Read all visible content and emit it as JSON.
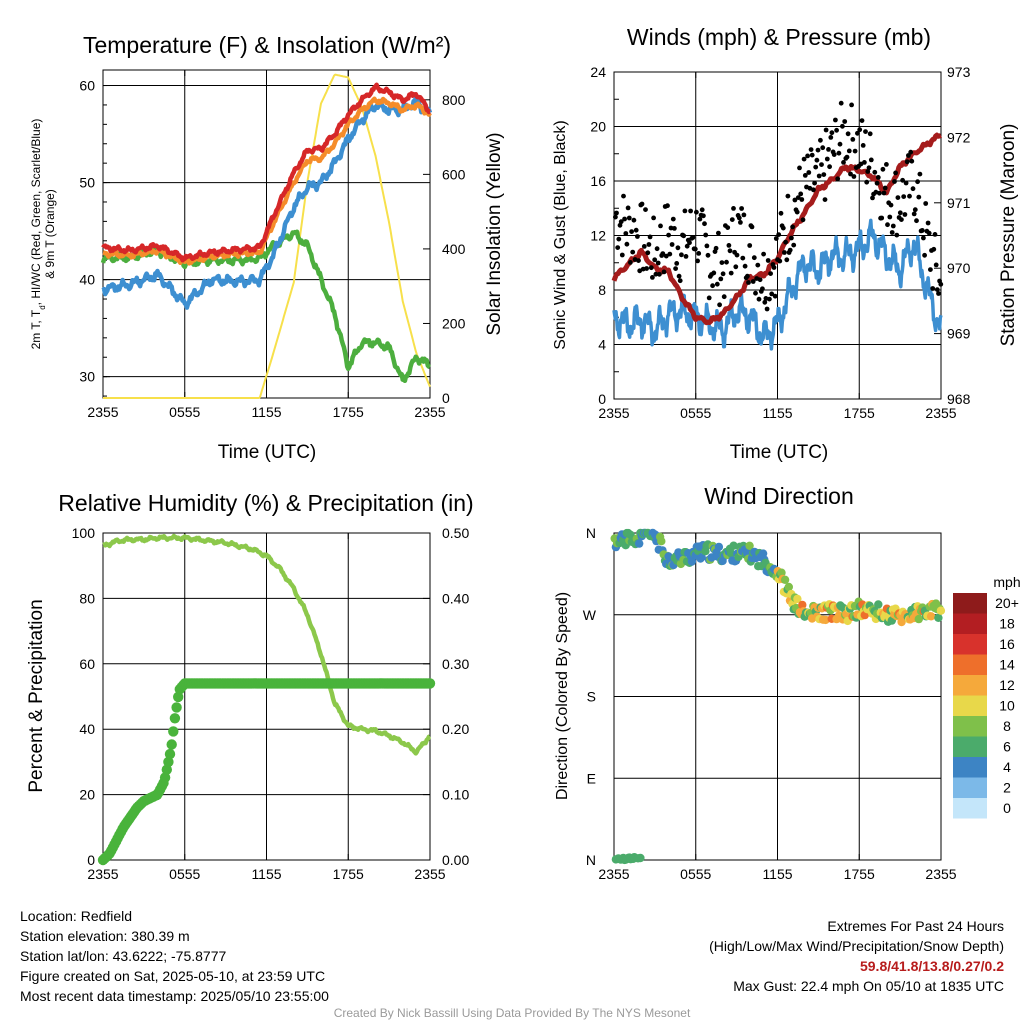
{
  "panels": {
    "temp": {
      "title": "Temperature (F) & Insolation (W/m²)",
      "xlabel": "Time (UTC)",
      "ylabel_lines": [
        "2m T, T",
        "d",
        ", HI/WC (Red, Green, Scarlet/Blue)",
        "& 9m T (Orange)"
      ],
      "y2label": "Solar Insolation (Yellow)"
    },
    "wind": {
      "title": "Winds (mph) & Pressure (mb)",
      "xlabel": "Time (UTC)",
      "ylabel": "Sonic Wind & Gust (Blue, Black)",
      "y2label": "Station Pressure (Maroon)"
    },
    "rh": {
      "title": "Relative Humidity (%) & Precipitation (in)",
      "ylabel": "Percent & Precipitation"
    },
    "dir": {
      "title": "Wind Direction",
      "ylabel": "Direction (Colored By Speed)",
      "colorbar_title": "mph"
    }
  },
  "chart_data": [
    {
      "type": "line",
      "title": "Temperature (F) & Insolation (W/m²)",
      "xlabel": "Time (UTC)",
      "ylabel": "2m T, Td, HI/WC (Red, Green, Scarlet/Blue) & 9m T (Orange)",
      "y2label": "Solar Insolation (Yellow)",
      "x": [
        0,
        2,
        4,
        6,
        8,
        10,
        11.5,
        12.5,
        14,
        15,
        16,
        17,
        18,
        19,
        20,
        21,
        22,
        23,
        24
      ],
      "xticks": [
        "2355",
        "0555",
        "1155",
        "1755",
        "2355"
      ],
      "ylim": [
        27.8,
        61.6
      ],
      "yticks": [
        30,
        40,
        50,
        60
      ],
      "y2lim": [
        0,
        880
      ],
      "y2ticks": [
        0,
        200,
        400,
        600,
        800
      ],
      "series": [
        {
          "name": "2m T",
          "color": "#d62728",
          "axis": "left",
          "values": [
            43.3,
            43.0,
            43.5,
            42.2,
            42.8,
            43.1,
            43.3,
            46.5,
            51.0,
            53.3,
            53.5,
            55.0,
            57.0,
            58.5,
            59.8,
            59.3,
            58.5,
            59.2,
            57.3
          ]
        },
        {
          "name": "9m T",
          "color": "#f58c2a",
          "axis": "left",
          "values": [
            42.7,
            42.5,
            43.0,
            41.8,
            42.4,
            42.7,
            42.8,
            45.8,
            50.0,
            52.3,
            52.5,
            54.0,
            56.0,
            57.5,
            58.5,
            58.2,
            57.5,
            58.0,
            57.0
          ]
        },
        {
          "name": "HI/WC",
          "color": "#3d8fd1",
          "axis": "left",
          "values": [
            39.0,
            39.5,
            40.5,
            37.5,
            40.0,
            39.8,
            40.0,
            42.5,
            47.5,
            49.5,
            50.0,
            52.0,
            54.5,
            56.5,
            58.0,
            57.5,
            57.5,
            58.3,
            57.0
          ]
        },
        {
          "name": "Td",
          "color": "#4cae3e",
          "axis": "left",
          "values": [
            42.2,
            42.3,
            43.0,
            41.7,
            42.0,
            42.0,
            42.2,
            43.5,
            44.8,
            43.5,
            40.0,
            36.5,
            31.0,
            33.5,
            33.5,
            33.0,
            29.5,
            32.0,
            31.2
          ]
        },
        {
          "name": "Solar Insolation",
          "color": "#f7e04b",
          "axis": "right",
          "values": [
            0,
            0,
            0,
            0,
            0,
            0,
            0,
            120,
            310,
            580,
            790,
            868,
            860,
            780,
            650,
            470,
            260,
            120,
            30
          ]
        }
      ]
    },
    {
      "type": "line",
      "title": "Winds (mph) & Pressure (mb)",
      "xlabel": "Time (UTC)",
      "ylabel": "Sonic Wind & Gust (Blue, Black)",
      "y2label": "Station Pressure (Maroon)",
      "x": [
        0,
        1,
        2,
        3,
        4,
        5,
        6,
        7,
        8,
        9,
        10,
        11,
        12,
        13,
        14,
        15,
        16,
        17,
        18,
        19,
        20,
        21,
        22,
        23,
        24
      ],
      "xticks": [
        "2355",
        "0555",
        "1155",
        "1755",
        "2355"
      ],
      "ylim": [
        0,
        24
      ],
      "yticks": [
        0,
        4,
        8,
        12,
        16,
        20,
        24
      ],
      "y2lim": [
        968,
        973
      ],
      "y2ticks": [
        968,
        969,
        970,
        971,
        972,
        973
      ],
      "series": [
        {
          "name": "Sonic Wind",
          "color": "#3d8fd1",
          "axis": "left",
          "values": [
            6.0,
            5.5,
            5.8,
            5.0,
            6.2,
            6.5,
            6.0,
            5.5,
            5.0,
            6.5,
            6.0,
            4.5,
            5.5,
            8.0,
            10.0,
            9.5,
            10.5,
            10.5,
            11.0,
            12.0,
            10.5,
            9.5,
            11.5,
            8.0,
            5.0
          ]
        },
        {
          "name": "Gust",
          "color": "#000000",
          "axis": "left",
          "values": [
            13.5,
            12.5,
            11.8,
            10.5,
            12.2,
            11.0,
            12.5,
            10.0,
            9.5,
            12.5,
            11.0,
            9.0,
            10.5,
            13.5,
            15.5,
            16.0,
            18.0,
            19.5,
            18.5,
            17.0,
            15.0,
            14.5,
            16.0,
            11.5,
            8.0
          ]
        },
        {
          "name": "Station Pressure",
          "color": "#a51c1c",
          "axis": "right",
          "values": [
            969.85,
            970.05,
            970.25,
            970.0,
            969.95,
            969.55,
            969.25,
            969.18,
            969.3,
            969.55,
            969.85,
            969.9,
            970.15,
            970.55,
            970.85,
            971.2,
            971.35,
            971.55,
            971.5,
            971.4,
            971.15,
            971.55,
            971.75,
            971.9,
            972.05
          ]
        }
      ]
    },
    {
      "type": "line",
      "title": "Relative Humidity (%) & Precipitation (in)",
      "ylabel": "Percent & Precipitation",
      "x": [
        0,
        1,
        2,
        3,
        4,
        5,
        6,
        7,
        8,
        9,
        10,
        11,
        12,
        13,
        14,
        15,
        16,
        17,
        18,
        19,
        20,
        21,
        22,
        23,
        24
      ],
      "xticks": [
        "2355",
        "0555",
        "1155",
        "1755",
        "2355"
      ],
      "ylim": [
        0,
        100
      ],
      "yticks": [
        0,
        20,
        40,
        60,
        80,
        100
      ],
      "y2lim": [
        0,
        0.5
      ],
      "y2ticks": [
        "0.00",
        "0.10",
        "0.20",
        "0.30",
        "0.40",
        "0.50"
      ],
      "series": [
        {
          "name": "Relative Humidity",
          "color": "#8cc84b",
          "axis": "left",
          "values": [
            96,
            97.5,
            98,
            98,
            98.5,
            98.5,
            98.5,
            98,
            97.5,
            97,
            96,
            95,
            93,
            89,
            83,
            75,
            63,
            48,
            41,
            40,
            39.5,
            38,
            36,
            33,
            38
          ]
        },
        {
          "name": "Precipitation",
          "color": "#49b33b",
          "axis": "right",
          "x": [
            0,
            0.5,
            1,
            1.5,
            2,
            2.5,
            3,
            3.5,
            4,
            4.5,
            5,
            5.3,
            5.6,
            6,
            24
          ],
          "values": [
            0.0,
            0.01,
            0.03,
            0.05,
            0.065,
            0.08,
            0.09,
            0.095,
            0.1,
            0.12,
            0.17,
            0.22,
            0.26,
            0.27,
            0.27
          ]
        }
      ]
    },
    {
      "type": "scatter",
      "title": "Wind Direction",
      "ylabel": "Direction (Colored By Speed)",
      "x": [
        0,
        1,
        2,
        3,
        4,
        5,
        6,
        7,
        8,
        9,
        10,
        11,
        12,
        13,
        14,
        15,
        16,
        17,
        18,
        19,
        20,
        21,
        22,
        23,
        24
      ],
      "xticks": [
        "2355",
        "0555",
        "1155",
        "1755",
        "2355"
      ],
      "yticks": [
        "N",
        "E",
        "S",
        "W",
        "N"
      ],
      "ylim": [
        0,
        360
      ],
      "series": [
        {
          "name": "Wind Direction",
          "values": [
            351,
            355,
            357,
            358,
            330,
            332,
            337,
            339,
            336,
            338,
            337,
            329,
            318,
            287,
            270,
            272,
            274,
            270,
            276,
            274,
            270,
            268,
            271,
            272,
            275
          ]
        }
      ],
      "colorbar": {
        "title": "mph",
        "labels": [
          "20+",
          "18",
          "16",
          "14",
          "12",
          "10",
          "8",
          "6",
          "4",
          "2",
          "0"
        ],
        "colors": [
          "#8e1b1b",
          "#b31e22",
          "#d8322c",
          "#ee6f2b",
          "#f5a93b",
          "#e8d84a",
          "#7fc04a",
          "#4bab6b",
          "#3d84c4",
          "#7cb9e8",
          "#c4e6fa"
        ]
      }
    }
  ],
  "footer": {
    "location": "Location: Redfield",
    "elevation": "Station elevation: 380.39 m",
    "latlon": "Station lat/lon: 43.6222; -75.8777",
    "created": "Figure created on Sat, 2025-05-10, at 23:59 UTC",
    "recent": "Most recent data timestamp: 2025/05/10 23:55:00",
    "extremes_title": "Extremes For Past 24 Hours",
    "extremes_sub": "(High/Low/Max Wind/Precipitation/Snow Depth)",
    "extremes_values": "59.8/41.8/13.8/0.27/0.2",
    "max_gust": "Max Gust: 22.4 mph On 05/10 at 1835 UTC",
    "credit": "Created By Nick Bassill Using Data Provided By The NYS Mesonet"
  }
}
